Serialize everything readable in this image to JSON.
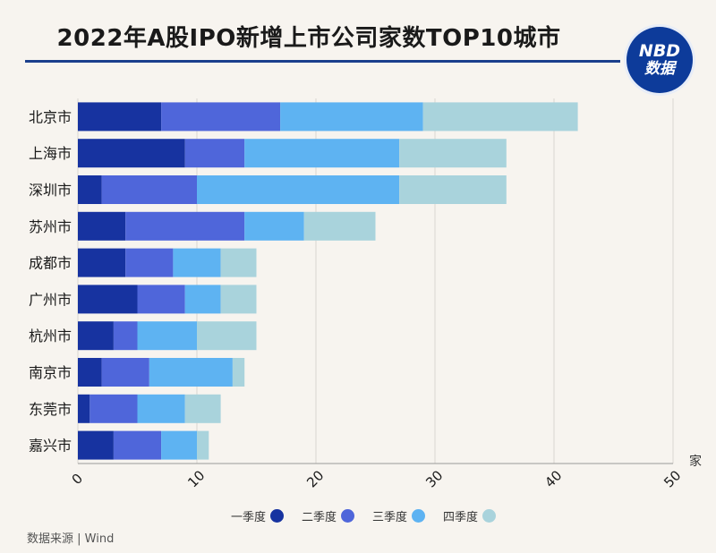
{
  "header": {
    "title": "2022年A股IPO新增上市公司家数TOP10城市",
    "logo_line1": "NBD",
    "logo_line2": "数据"
  },
  "footer": {
    "source": "数据来源 | Wind"
  },
  "chart_data": {
    "type": "bar",
    "orientation": "horizontal",
    "stacked": true,
    "title": "2022年A股IPO新增上市公司家数TOP10城市",
    "categories": [
      "北京市",
      "上海市",
      "深圳市",
      "苏州市",
      "成都市",
      "广州市",
      "杭州市",
      "南京市",
      "东莞市",
      "嘉兴市"
    ],
    "series": [
      {
        "name": "一季度",
        "color": "#1733a0",
        "values": [
          7,
          9,
          2,
          4,
          4,
          5,
          3,
          2,
          1,
          3
        ]
      },
      {
        "name": "二季度",
        "color": "#4f66da",
        "values": [
          10,
          5,
          8,
          10,
          4,
          4,
          2,
          4,
          4,
          4
        ]
      },
      {
        "name": "三季度",
        "color": "#5eb3f2",
        "values": [
          12,
          13,
          17,
          5,
          4,
          3,
          5,
          7,
          4,
          3
        ]
      },
      {
        "name": "四季度",
        "color": "#a9d3dc",
        "values": [
          13,
          9,
          9,
          6,
          3,
          3,
          5,
          1,
          3,
          1
        ]
      }
    ],
    "xlim": [
      0,
      50
    ],
    "xticks": [
      "0",
      "10",
      "20",
      "30",
      "40",
      "50"
    ],
    "xunit": "家",
    "grid": true,
    "legend_position": "bottom"
  }
}
